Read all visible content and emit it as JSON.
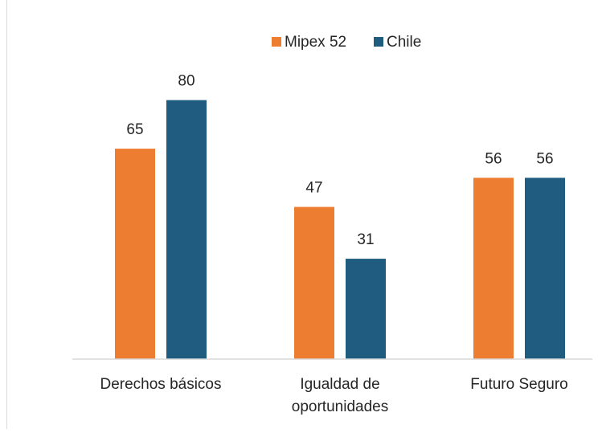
{
  "colors": {
    "mipex": "#ED7D31",
    "chile": "#1F5C80",
    "axis": "#d9d9d9",
    "text": "#262626"
  },
  "chart_data": {
    "type": "bar",
    "title": "",
    "xlabel": "",
    "ylabel": "",
    "ylim": [
      0,
      100
    ],
    "grid": false,
    "legend_position": "top-center",
    "categories": [
      [
        "Derechos básicos"
      ],
      [
        "Igualdad de",
        "oportunidades"
      ],
      [
        "Futuro Seguro"
      ]
    ],
    "series": [
      {
        "name": "Mipex 52",
        "color": "#ED7D31",
        "values": [
          65,
          47,
          56
        ]
      },
      {
        "name": "Chile",
        "color": "#1F5C80",
        "values": [
          80,
          31,
          56
        ]
      }
    ]
  }
}
